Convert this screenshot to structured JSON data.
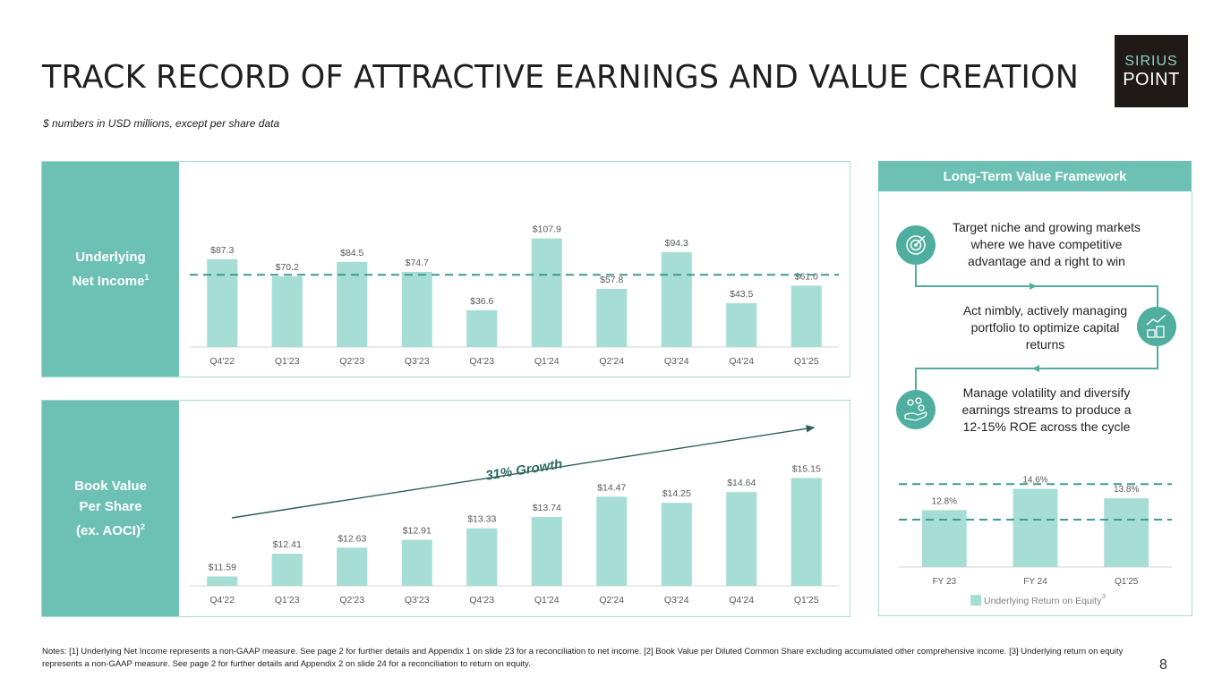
{
  "title": "TRACK RECORD OF ATTRACTIVE EARNINGS AND VALUE CREATION",
  "subtitle": "$ numbers in USD millions, except per share data",
  "logo": {
    "line1": "SIRIUS",
    "line2": "POINT"
  },
  "colors": {
    "accent": "#6dc1b4",
    "bar": "#a6ddd4",
    "dash": "#3d9c8c",
    "arrow": "#2e5e5a",
    "growth": "#2e6b62"
  },
  "panel1": {
    "label_line1": "Underlying",
    "label_line2": "Net Income",
    "label_sup": "1"
  },
  "panel2": {
    "label_line1": "Book Value",
    "label_line2": "Per Share",
    "label_line3": "(ex. AOCI)",
    "label_sup": "2"
  },
  "framework": {
    "header": "Long-Term Value Framework",
    "item1": "Target niche and growing markets where we have competitive advantage and a right to win",
    "item2": "Act nimbly, actively managing portfolio to optimize capital returns",
    "item3": "Manage volatility and diversify earnings streams to produce a 12-15% ROE across the cycle"
  },
  "notes": "Notes: [1] Underlying Net Income represents a non-GAAP measure. See page 2 for further details and Appendix 1 on slide 23 for a reconciliation to net income. [2] Book Value per Diluted Common Share excluding accumulated other comprehensive income. [3] Underlying return on equity represents a non-GAAP measure. See page 2 for further details and Appendix 2 on slide 24 for a reconciliation to return on equity.",
  "page_number": "8",
  "chart_data": [
    {
      "type": "bar",
      "title": "Underlying Net Income",
      "categories": [
        "Q4'22",
        "Q1'23",
        "Q2'23",
        "Q3'23",
        "Q4'23",
        "Q1'24",
        "Q2'24",
        "Q3'24",
        "Q4'24",
        "Q1'25"
      ],
      "values": [
        87.3,
        70.2,
        84.5,
        74.7,
        36.6,
        107.9,
        57.8,
        94.3,
        43.5,
        61.0
      ],
      "labels": [
        "$87.3",
        "$70.2",
        "$84.5",
        "$74.7",
        "$36.6",
        "$107.9",
        "$57.8",
        "$94.3",
        "$43.5",
        "$61.0"
      ],
      "average_line": 71.8,
      "ylim": [
        0,
        120
      ]
    },
    {
      "type": "bar",
      "title": "Book Value Per Share (ex. AOCI)",
      "categories": [
        "Q4'22",
        "Q1'23",
        "Q2'23",
        "Q3'23",
        "Q4'23",
        "Q1'24",
        "Q2'24",
        "Q3'24",
        "Q4'24",
        "Q1'25"
      ],
      "values": [
        11.59,
        12.41,
        12.63,
        12.91,
        13.33,
        13.74,
        14.47,
        14.25,
        14.64,
        15.15
      ],
      "labels": [
        "$11.59",
        "$12.41",
        "$12.63",
        "$12.91",
        "$13.33",
        "$13.74",
        "$14.47",
        "$14.25",
        "$14.64",
        "$15.15"
      ],
      "annotation": "31% Growth",
      "ylim": [
        11.25,
        15.55
      ]
    },
    {
      "type": "bar",
      "title": "Underlying Return on Equity",
      "categories": [
        "FY 23",
        "FY 24",
        "Q1'25"
      ],
      "values": [
        12.8,
        14.6,
        13.8
      ],
      "labels": [
        "12.8%",
        "14.6%",
        "13.8%"
      ],
      "target_range": [
        12,
        15
      ],
      "ylim": [
        8,
        16
      ],
      "legend": "Underlying Return on Equity",
      "legend_sup": "3"
    }
  ]
}
